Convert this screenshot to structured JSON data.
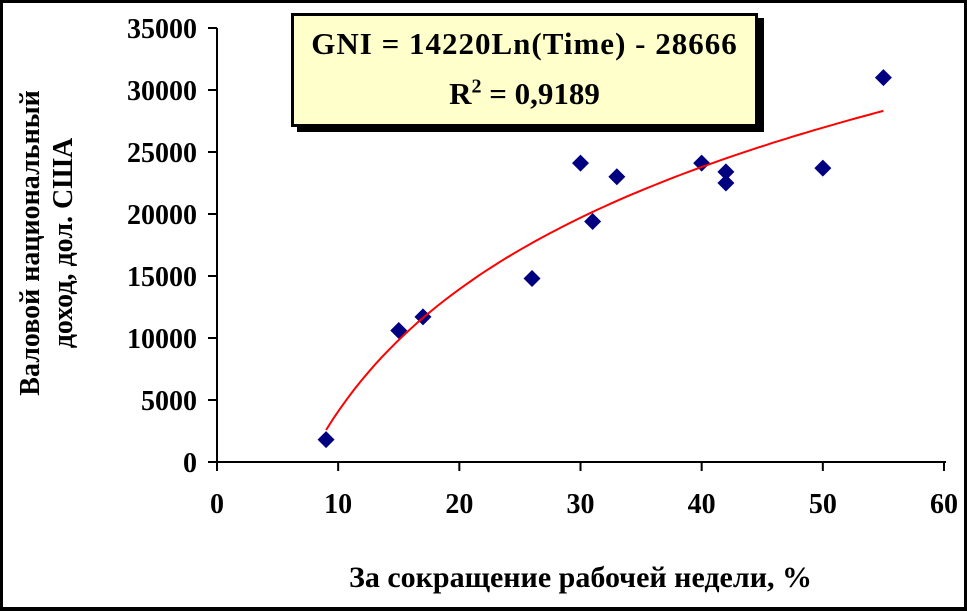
{
  "chart_data": {
    "type": "scatter",
    "title": "",
    "xlabel": "За сокращение рабочей недели, %",
    "ylabel_lines": [
      "Валовой национальный",
      "доход, дол. США"
    ],
    "xlim": [
      0,
      60
    ],
    "ylim": [
      0,
      35000
    ],
    "x_ticks": [
      0,
      10,
      20,
      30,
      40,
      50,
      60
    ],
    "y_ticks": [
      0,
      5000,
      10000,
      15000,
      20000,
      25000,
      30000,
      35000
    ],
    "grid": false,
    "legend": "none",
    "series": [
      {
        "name": "GNI",
        "marker": "diamond",
        "color": "#000080",
        "points": [
          [
            9,
            1800
          ],
          [
            15,
            10600
          ],
          [
            17,
            11700
          ],
          [
            26,
            14800
          ],
          [
            30,
            24100
          ],
          [
            31,
            19400
          ],
          [
            33,
            23000
          ],
          [
            40,
            24100
          ],
          [
            42,
            23400
          ],
          [
            42,
            22500
          ],
          [
            50,
            23700
          ],
          [
            55,
            31000
          ]
        ]
      }
    ],
    "trendline": {
      "type": "logarithmic",
      "equation": "GNI = 14220Ln(Time) - 28666",
      "r_squared": "0,9189",
      "coef_a": 14220,
      "coef_b": -28666,
      "x_start": 9,
      "x_end": 55,
      "color": "#FF0000"
    }
  },
  "equation_box": {
    "line1": "GNI = 14220Ln(Time) - 28666",
    "r2_base": "R",
    "r2_sup": "2",
    "r2_tail": " = 0,9189",
    "background": "#FFFFCC",
    "border_color": "#000000"
  },
  "colors": {
    "marker": "#000080",
    "trendline": "#FF0000",
    "axis": "#000000",
    "background": "#FFFFFF"
  }
}
